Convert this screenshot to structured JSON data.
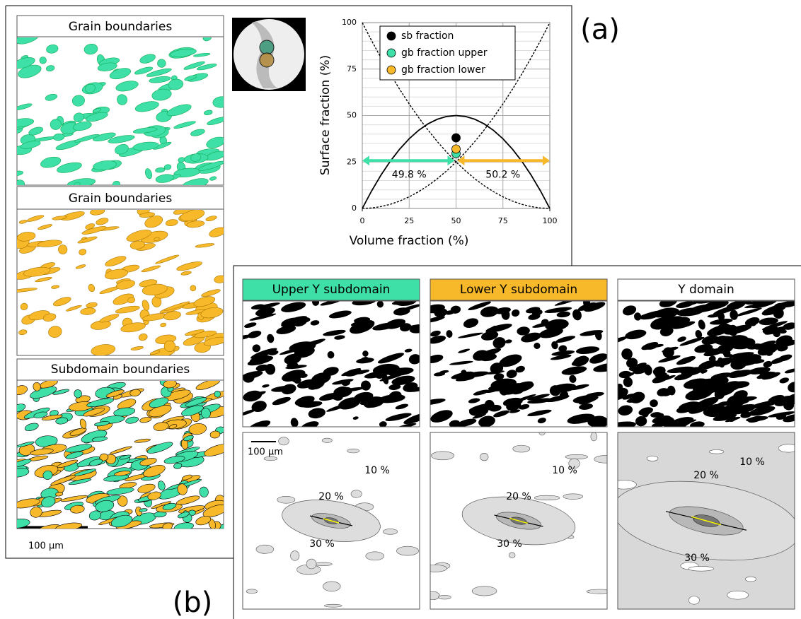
{
  "chart_data": {
    "type": "line",
    "xlabel": "Volume fraction (%)",
    "ylabel": "Surface fraction (%)",
    "xlim": [
      0,
      100
    ],
    "ylim": [
      0,
      100
    ],
    "xticks": [
      0,
      25,
      50,
      75,
      100
    ],
    "yticks": [
      0,
      25,
      50,
      75,
      100
    ],
    "grid": true,
    "legend": "top-right",
    "x": [
      0,
      5,
      10,
      15,
      20,
      25,
      30,
      35,
      40,
      45,
      50,
      55,
      60,
      65,
      70,
      75,
      80,
      85,
      90,
      95,
      100
    ],
    "lines": [
      {
        "color": "#000000",
        "dash": false,
        "values": [
          0,
          9.5,
          18,
          25.5,
          32,
          37.5,
          42,
          45.5,
          48,
          49.5,
          50,
          49.5,
          48,
          45.5,
          42,
          37.5,
          32,
          25.5,
          18,
          9.5,
          0
        ]
      },
      {
        "color": "#000000",
        "dash": true,
        "values": [
          100,
          90.25,
          81,
          72.25,
          64,
          56.25,
          49,
          42.25,
          36,
          30.25,
          25,
          20.25,
          16,
          12.25,
          9,
          6.25,
          4,
          2.25,
          1,
          0.25,
          0
        ]
      },
      {
        "color": "#000000",
        "dash": true,
        "values": [
          0,
          0.25,
          1,
          2.25,
          4,
          6.25,
          9,
          12.25,
          16,
          20.25,
          25,
          30.25,
          36,
          42.25,
          49,
          56.25,
          64,
          72.25,
          81,
          90.25,
          100
        ]
      }
    ],
    "series": [
      {
        "name": "sb fraction",
        "color": "#000000",
        "x": [
          50
        ],
        "values": [
          38
        ]
      },
      {
        "name": "gb fraction upper",
        "color": "#3ee0a8",
        "x": [
          50
        ],
        "values": [
          29.5
        ]
      },
      {
        "name": "gb fraction lower",
        "color": "#f7b82a",
        "x": [
          50
        ],
        "values": [
          32
        ]
      }
    ],
    "annotations": [
      "49.8 %",
      "50.2 %"
    ]
  },
  "figure": {
    "label_a": "(a)",
    "label_b": "(b)",
    "left_panels": [
      "Grain boundaries",
      "Grain boundaries",
      "Subdomain boundaries"
    ],
    "scale_bar": "100 µm",
    "bottom_panels": [
      "Upper Y subdomain",
      "Lower Y subdomain",
      "Y domain"
    ],
    "contour_scale_bar": "100 µm",
    "contours": [
      [
        "10 %",
        "20 %",
        "30 %"
      ],
      [
        "10 %",
        "20 %",
        "30 %"
      ],
      [
        "10 %",
        "20 %",
        "30 %"
      ]
    ]
  }
}
